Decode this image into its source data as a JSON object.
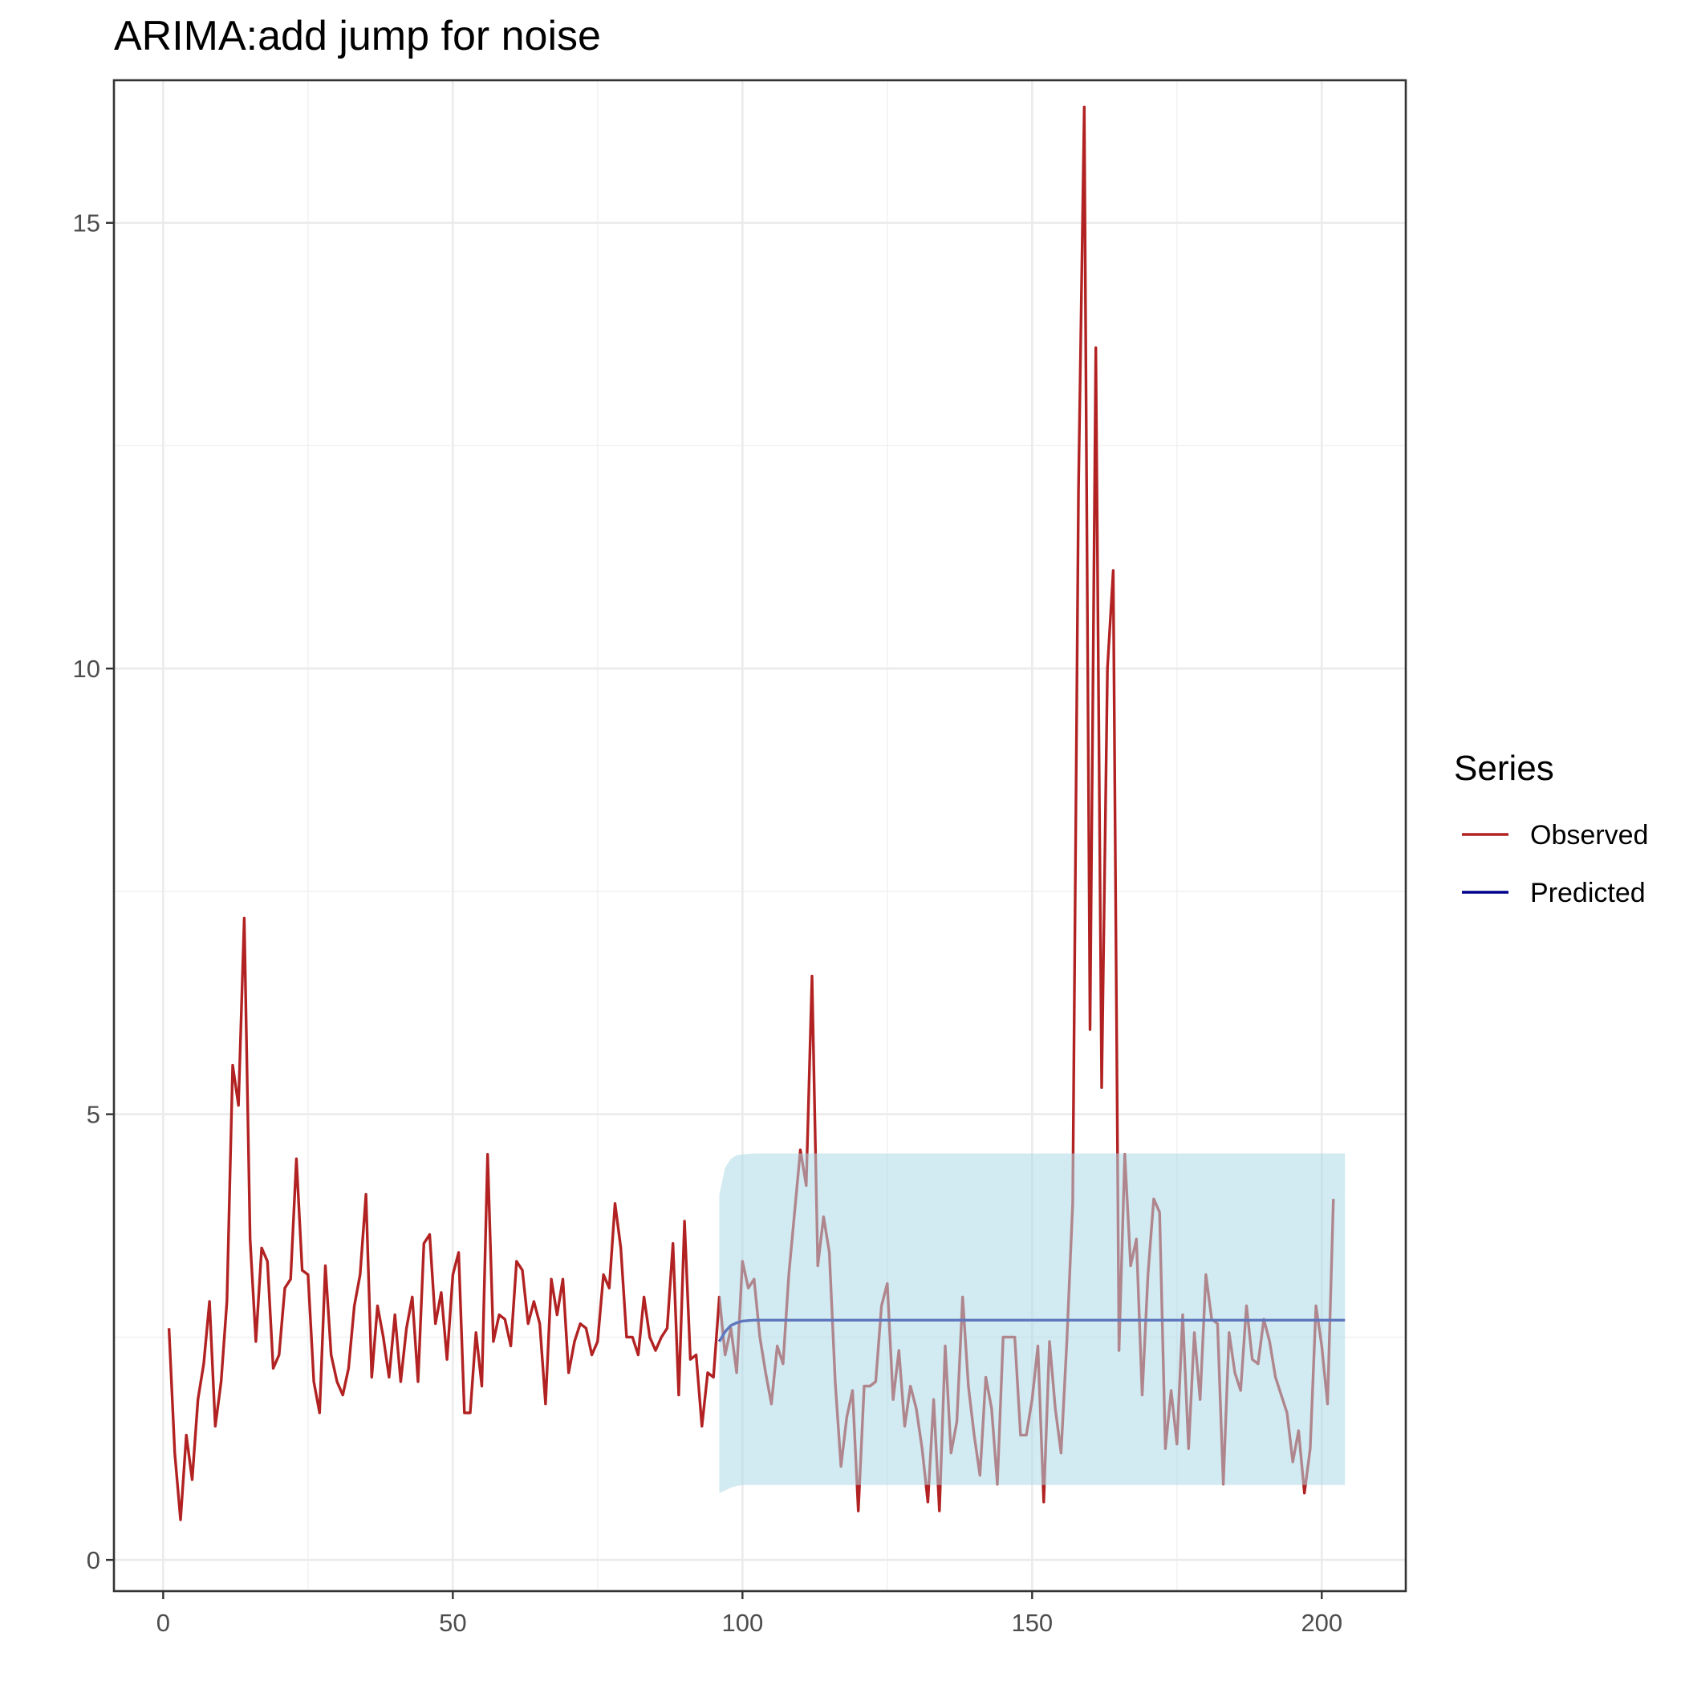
{
  "chart_data": {
    "type": "line",
    "title": "ARIMA:add jump for noise",
    "xlabel": "",
    "ylabel": "",
    "xlim": [
      -8.5,
      214.5
    ],
    "ylim": [
      -0.35,
      16.6
    ],
    "x_ticks": [
      "0",
      "50",
      "100",
      "150",
      "200"
    ],
    "y_ticks": [
      "0",
      "5",
      "10",
      "15"
    ],
    "grid": true,
    "legend": {
      "title": "Series",
      "position": "right",
      "entries": [
        {
          "label": "Observed",
          "color": "#b22222"
        },
        {
          "label": "Predicted",
          "color": "#00008b"
        }
      ]
    },
    "series": [
      {
        "name": "Observed",
        "color": "#b22222",
        "x_start": 1,
        "values": [
          2.6,
          1.2,
          0.45,
          1.4,
          0.9,
          1.8,
          2.2,
          2.9,
          1.5,
          2.0,
          2.9,
          5.55,
          5.1,
          7.2,
          3.6,
          2.45,
          3.5,
          3.35,
          2.15,
          2.3,
          3.05,
          3.15,
          4.5,
          3.25,
          3.2,
          2.0,
          1.65,
          3.3,
          2.3,
          2.0,
          1.85,
          2.15,
          2.85,
          3.2,
          4.1,
          2.05,
          2.85,
          2.5,
          2.05,
          2.75,
          2.0,
          2.6,
          2.95,
          2.0,
          3.55,
          3.65,
          2.65,
          3.0,
          2.25,
          3.2,
          3.45,
          1.65,
          1.65,
          2.55,
          1.95,
          4.55,
          2.45,
          2.75,
          2.7,
          2.4,
          3.35,
          3.25,
          2.65,
          2.9,
          2.65,
          1.75,
          3.15,
          2.75,
          3.15,
          2.1,
          2.45,
          2.65,
          2.6,
          2.3,
          2.45,
          3.2,
          3.05,
          4.0,
          3.5,
          2.5,
          2.5,
          2.3,
          2.95,
          2.5,
          2.35,
          2.5,
          2.6,
          3.55,
          1.85,
          3.8,
          2.25,
          2.3,
          1.5,
          2.1,
          2.05,
          2.95,
          2.3,
          2.6,
          2.1,
          3.35,
          3.05,
          3.15,
          2.5,
          2.1,
          1.75,
          2.4,
          2.2,
          3.2,
          3.9,
          4.6,
          4.2,
          6.55,
          3.3,
          3.85,
          3.45,
          2.0,
          1.05,
          1.6,
          1.9,
          0.55,
          1.95,
          1.95,
          2.0,
          2.85,
          3.1,
          1.8,
          2.35,
          1.5,
          1.95,
          1.7,
          1.25,
          0.65,
          1.8,
          0.55,
          2.4,
          1.2,
          1.55,
          2.95,
          1.95,
          1.4,
          0.95,
          2.05,
          1.7,
          0.85,
          2.5,
          2.5,
          2.5,
          1.4,
          1.4,
          1.8,
          2.4,
          0.65,
          2.45,
          1.7,
          1.2,
          2.45,
          4.0,
          12.0,
          16.3,
          5.95,
          13.6,
          5.3,
          10.0,
          11.1,
          2.35,
          4.55,
          3.3,
          3.6,
          1.85,
          3.2,
          4.05,
          3.9,
          1.25,
          1.9,
          1.3,
          2.75,
          1.25,
          2.55,
          1.8,
          3.2,
          2.7,
          2.65,
          0.85,
          2.55,
          2.1,
          1.9,
          2.85,
          2.25,
          2.2,
          2.7,
          2.45,
          2.05,
          1.85,
          1.65,
          1.1,
          1.45,
          0.75,
          1.25,
          2.85,
          2.4,
          1.75,
          4.05
        ]
      },
      {
        "name": "Predicted",
        "color": "#00008b",
        "x": [
          96,
          97,
          98,
          99,
          100,
          101,
          102,
          103,
          104,
          204
        ],
        "values": [
          2.45,
          2.56,
          2.63,
          2.66,
          2.68,
          2.685,
          2.69,
          2.69,
          2.69,
          2.69
        ]
      }
    ],
    "interval": {
      "color": "#add8e6",
      "x": [
        96,
        97,
        98,
        99,
        100,
        102,
        104,
        204
      ],
      "upper": [
        4.1,
        4.4,
        4.5,
        4.54,
        4.55,
        4.56,
        4.56,
        4.56
      ],
      "lower": [
        0.75,
        0.78,
        0.81,
        0.83,
        0.84,
        0.84,
        0.84,
        0.84
      ]
    }
  }
}
